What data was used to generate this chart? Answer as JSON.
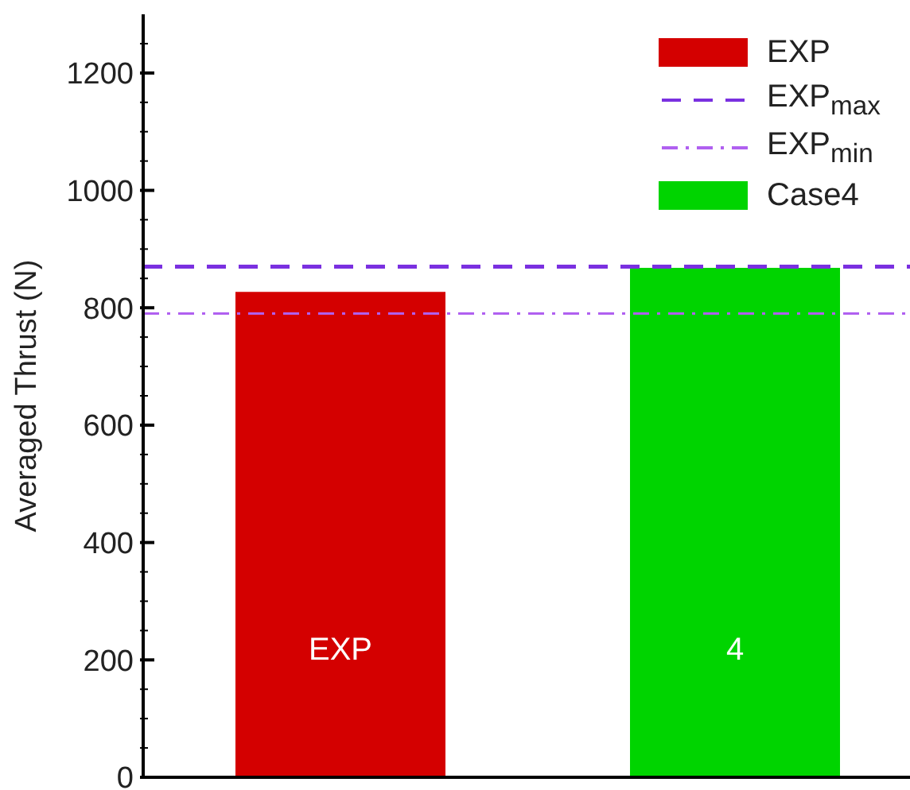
{
  "chart_data": {
    "type": "bar",
    "ylabel": "Averaged Thrust (N)",
    "categories": [
      "EXP",
      "4"
    ],
    "series": [
      {
        "name": "EXP",
        "color": "#d40000",
        "values": [
          827,
          null
        ]
      },
      {
        "name": "Case4",
        "color": "#00d400",
        "values": [
          null,
          868
        ]
      }
    ],
    "ylim": [
      0,
      1300
    ],
    "yticks": [
      0,
      {
        "value": 50,
        "label": null
      },
      {
        "value": 100,
        "label": null
      },
      {
        "value": 150,
        "label": null
      },
      200,
      {
        "value": 250,
        "label": null
      },
      {
        "value": 300,
        "label": null
      },
      {
        "value": 350,
        "label": null
      },
      400,
      {
        "value": 450,
        "label": null
      },
      {
        "value": 500,
        "label": null
      },
      {
        "value": 550,
        "label": null
      },
      600,
      {
        "value": 650,
        "label": null
      },
      {
        "value": 700,
        "label": null
      },
      {
        "value": 750,
        "label": null
      },
      800,
      {
        "value": 850,
        "label": null
      },
      {
        "value": 900,
        "label": null
      },
      {
        "value": 950,
        "label": null
      },
      1000,
      {
        "value": 1050,
        "label": null
      },
      {
        "value": 1100,
        "label": null
      },
      {
        "value": 1150,
        "label": null
      },
      1200,
      {
        "value": 1250,
        "label": null
      }
    ],
    "ref_lines": [
      {
        "axis": "y",
        "value": 870,
        "label": "EXP$_{max}$",
        "color": "#7a30e0",
        "line_style": "dashed"
      },
      {
        "axis": "y",
        "value": 790,
        "label": "EXP$_{min}$",
        "color": "#b060f0",
        "line_style": "dashdot"
      }
    ],
    "legend": "top right",
    "grid": false
  }
}
